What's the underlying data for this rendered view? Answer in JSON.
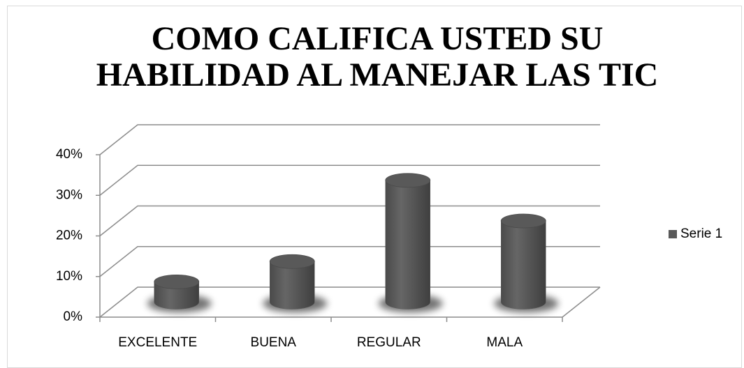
{
  "chart_data": {
    "type": "bar3d",
    "title": "COMO CALIFICA USTED SU HABILIDAD AL MANEJAR LAS TIC",
    "categories": [
      "EXCELENTE",
      "BUENA",
      "REGULAR",
      "MALA"
    ],
    "series": [
      {
        "name": "Serie 1",
        "color": "#595959",
        "values": [
          5,
          10,
          30,
          20
        ]
      }
    ],
    "ylim": [
      0,
      40
    ],
    "yticks": [
      {
        "value": 0,
        "label": "0%"
      },
      {
        "value": 10,
        "label": "10%"
      },
      {
        "value": 20,
        "label": "20%"
      },
      {
        "value": 30,
        "label": "30%"
      },
      {
        "value": 40,
        "label": "40%"
      }
    ],
    "grid": true,
    "legend": "right"
  }
}
